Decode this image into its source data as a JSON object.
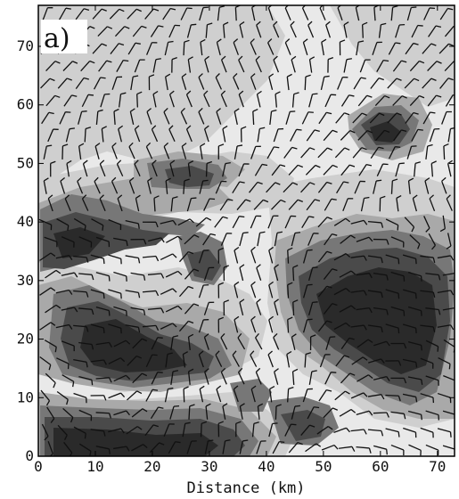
{
  "chart_data": {
    "type": "heatmap",
    "title": "",
    "panel_label": "a)",
    "xlabel": "Distance (km)",
    "ylabel": "",
    "xlim": [
      0,
      73
    ],
    "ylim": [
      0,
      77
    ],
    "x_ticks": [
      "0",
      "10",
      "20",
      "30",
      "40",
      "50",
      "60",
      "70"
    ],
    "y_ticks": [
      "0",
      "10",
      "20",
      "30",
      "40",
      "50",
      "60",
      "70"
    ],
    "shading": "terrain elevation, filled contours (light = low valleys, dark = high peaks)",
    "overlay": "near-surface wind barbs on a regular grid",
    "colors": {
      "level_0": "#e9e9e9",
      "level_1": "#cfcfcf",
      "level_2": "#a9a9a9",
      "level_3": "#777777",
      "level_4": "#4a4a4a",
      "level_5": "#2a2a2a",
      "barb": "#111111"
    }
  }
}
